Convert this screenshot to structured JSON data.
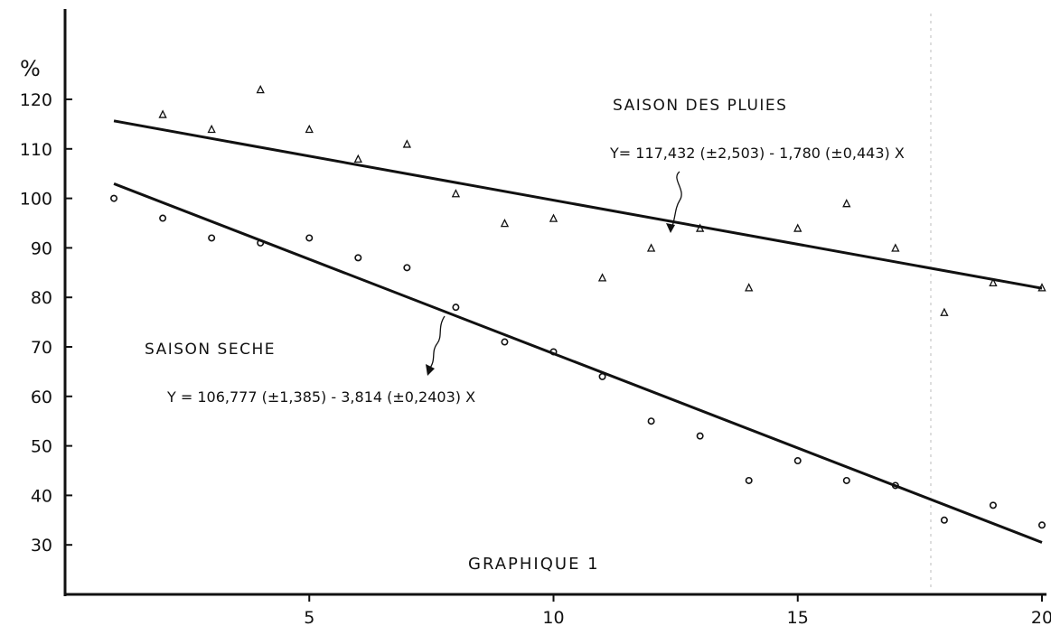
{
  "chart_data": {
    "type": "scatter",
    "title": "GRAPHIQUE 1",
    "ylabel": "%",
    "xlabel": "",
    "xlim": [
      0,
      20
    ],
    "ylim": [
      20,
      130
    ],
    "x_ticks": [
      5,
      10,
      15,
      20
    ],
    "y_ticks": [
      30,
      40,
      50,
      60,
      70,
      80,
      90,
      100,
      110,
      120
    ],
    "x_tick_labels": [
      "5",
      "10",
      "15",
      "20"
    ],
    "y_tick_labels": [
      "30",
      "40",
      "50",
      "60",
      "70",
      "80",
      "90",
      "100",
      "110",
      "120"
    ],
    "series": [
      {
        "name": "SAISON DES PLUIES",
        "marker": "triangle",
        "x": [
          2,
          3,
          4,
          5,
          6,
          7,
          8,
          9,
          10,
          11,
          12,
          13,
          14,
          15,
          16,
          17,
          18,
          19,
          20
        ],
        "y": [
          117,
          114,
          122,
          114,
          108,
          111,
          101,
          95,
          96,
          84,
          90,
          94,
          82,
          94,
          99,
          90,
          77,
          83,
          82
        ],
        "regression": {
          "equation": "Y= 117,432 (±2,503) - 1,780 (±0,443) X",
          "intercept": 117.432,
          "slope": -1.78,
          "x_range": [
            1,
            20
          ]
        }
      },
      {
        "name": "SAISON SECHE",
        "marker": "circle",
        "x": [
          1,
          2,
          3,
          4,
          5,
          6,
          7,
          8,
          9,
          10,
          11,
          12,
          13,
          14,
          15,
          16,
          17,
          18,
          19,
          20
        ],
        "y": [
          100,
          96,
          92,
          91,
          92,
          88,
          86,
          78,
          71,
          69,
          64,
          55,
          52,
          43,
          47,
          43,
          42,
          35,
          38,
          34
        ],
        "regression": {
          "equation": "Y = 106,777 (±1,385) - 3,814 (±0,2403) X",
          "intercept": 106.777,
          "slope": -3.814,
          "x_range": [
            1,
            20
          ]
        }
      }
    ],
    "grid": false,
    "legend": "none"
  }
}
